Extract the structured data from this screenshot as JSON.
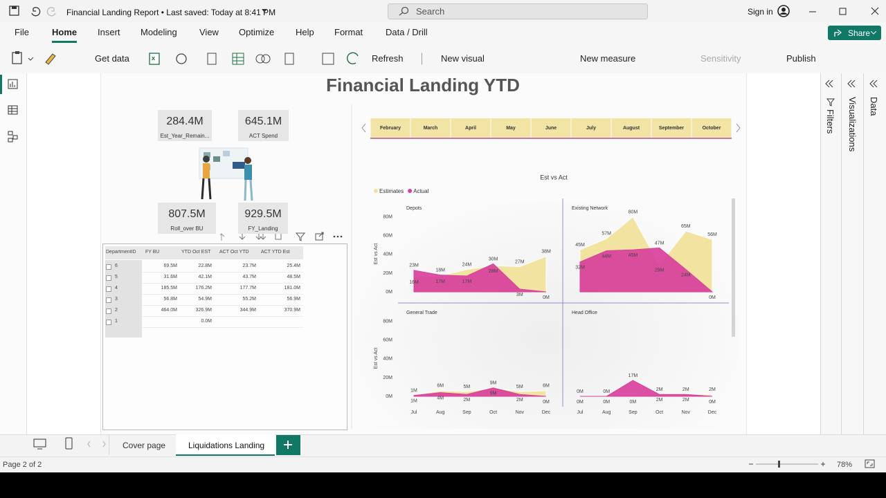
{
  "title_bar": {
    "title": "Financial Landing Report • Last saved: Today at 8:41 PM",
    "search": "Search",
    "sign_in": "Sign in"
  },
  "ribbon": {
    "tabs": [
      "File",
      "Home",
      "Insert",
      "Modeling",
      "View",
      "Optimize",
      "Help",
      "Format",
      "Data / Drill"
    ],
    "share": "Share",
    "commands": [
      "Get data",
      "Refresh",
      "New visual",
      "New measure",
      "Sensitivity",
      "Publish"
    ]
  },
  "panes": [
    "Filters",
    "Visualizations",
    "Data"
  ],
  "report": {
    "title": "Financial Landing YTD",
    "cards": [
      {
        "value": "284.4M",
        "label": "Est_Year_Remain..."
      },
      {
        "value": "645.1M",
        "label": "ACT Spend"
      },
      {
        "value": "807.5M",
        "label": "Roll_over BU"
      },
      {
        "value": "929.5M",
        "label": "FY_Landing"
      }
    ],
    "table": {
      "headers": [
        "DepartmentID",
        "FY BU",
        "YTD Oct EST",
        "ACT Oct YTD",
        "ACT YTD Est"
      ],
      "rows": [
        [
          "6",
          "69.5M",
          "22.8M",
          "23.7M",
          "25.4M"
        ],
        [
          "5",
          "31.6M",
          "42.1M",
          "43.7M",
          "48.5M"
        ],
        [
          "4",
          "185.5M",
          "176.2M",
          "177.7M",
          "181.0M"
        ],
        [
          "3",
          "56.8M",
          "54.9M",
          "55.2M",
          "56.9M"
        ],
        [
          "2",
          "464.0M",
          "326.9M",
          "344.9M",
          "370.9M"
        ],
        [
          "1",
          null,
          "0.0M",
          null,
          null
        ]
      ]
    },
    "slicer": {
      "months": [
        "February",
        "March",
        "April",
        "May",
        "June",
        "July",
        "August",
        "September",
        "October"
      ]
    },
    "visual": {
      "title": "Est vs Act",
      "y_label": "Est vs Act"
    }
  },
  "chart_data": [
    {
      "type": "area",
      "title": "Depots",
      "categories": [
        "Jul",
        "Aug",
        "Sep",
        "Oct",
        "Nov",
        "Dec"
      ],
      "series": [
        {
          "name": "Estimates",
          "color": "#f1e19c",
          "values": [
            16,
            17,
            24,
            28,
            27,
            38
          ],
          "value_labels": [
            "16M",
            "17M",
            "24M",
            "28M",
            "27M",
            "38M"
          ]
        },
        {
          "name": "Actual",
          "color": "#d8409c",
          "values": [
            23,
            18,
            17,
            30,
            3,
            0
          ],
          "value_labels": [
            "23M",
            "18M",
            "17M",
            "30M",
            "3M",
            "0M"
          ]
        }
      ],
      "ylim": [
        0,
        85
      ],
      "yticks": [
        {
          "value": 0,
          "label": "0M"
        },
        {
          "value": 20,
          "label": "20M"
        },
        {
          "value": 40,
          "label": "40M"
        },
        {
          "value": 60,
          "label": "60M"
        },
        {
          "value": 80,
          "label": "80M"
        }
      ]
    },
    {
      "type": "area",
      "title": "Existing Network",
      "categories": [
        "Jul",
        "Aug",
        "Sep",
        "Oct",
        "Nov",
        "Dec"
      ],
      "series": [
        {
          "name": "Estimates",
          "color": "#f1e19c",
          "values": [
            45,
            57,
            80,
            29,
            65,
            56
          ],
          "value_labels": [
            "45M",
            "57M",
            "80M",
            "29M",
            "65M",
            "56M"
          ]
        },
        {
          "name": "Actual",
          "color": "#d8409c",
          "values": [
            32,
            44,
            45,
            47,
            24,
            0
          ],
          "value_labels": [
            "32M",
            "44M",
            "45M",
            "47M",
            "24M",
            "0M"
          ]
        }
      ],
      "ylim": [
        0,
        85
      ]
    },
    {
      "type": "area",
      "title": "General Trade",
      "categories": [
        "Jul",
        "Aug",
        "Sep",
        "Oct",
        "Nov",
        "Dec"
      ],
      "series": [
        {
          "name": "Estimates",
          "color": "#f1e19c",
          "values": [
            1,
            6,
            5,
            9,
            5,
            6
          ],
          "value_labels": [
            "1M",
            "6M",
            "5M",
            "9M",
            "5M",
            "6M"
          ]
        },
        {
          "name": "Actual",
          "color": "#d8409c",
          "values": [
            1,
            4,
            2,
            9,
            2,
            0
          ],
          "value_labels": [
            "1M",
            "4M",
            "2M",
            "9M",
            "2M",
            "0M"
          ]
        }
      ],
      "ylim": [
        0,
        85
      ],
      "yticks": [
        {
          "value": 0,
          "label": "0M"
        },
        {
          "value": 20,
          "label": "20M"
        },
        {
          "value": 40,
          "label": "40M"
        },
        {
          "value": 60,
          "label": "60M"
        },
        {
          "value": 80,
          "label": "80M"
        }
      ]
    },
    {
      "type": "area",
      "title": "Head Office",
      "categories": [
        "Jul",
        "Aug",
        "Sep",
        "Oct",
        "Nov",
        "Dec"
      ],
      "series": [
        {
          "name": "Estimates",
          "color": "#f1e19c",
          "values": [
            0,
            0,
            0,
            2,
            2,
            2
          ],
          "value_labels": [
            "0M",
            "0M",
            "0M",
            "2M",
            "2M",
            "2M"
          ]
        },
        {
          "name": "Actual",
          "color": "#d8409c",
          "values": [
            0,
            0,
            17,
            2,
            2,
            0
          ],
          "value_labels": [
            "0M",
            "0M",
            "17M",
            "2M",
            "2M",
            "0M"
          ]
        }
      ],
      "ylim": [
        0,
        85
      ]
    }
  ],
  "page_tabs": [
    "Cover page",
    "Liquidations Landing"
  ],
  "status": {
    "page": "Page 2 of 2",
    "zoom": "78%"
  }
}
